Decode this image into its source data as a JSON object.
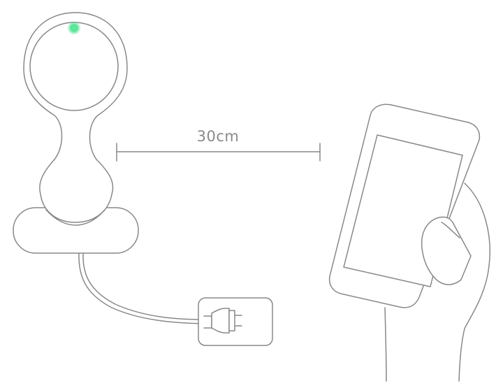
{
  "distance": {
    "label": "30cm"
  },
  "icons": {
    "camera": "baby-monitor-camera-icon",
    "power": "power-adapter-icon",
    "phone": "smartphone-icon",
    "hand": "hand-icon"
  },
  "colors": {
    "line": "#888888",
    "led": "#3ddc84",
    "background": "#ffffff"
  }
}
